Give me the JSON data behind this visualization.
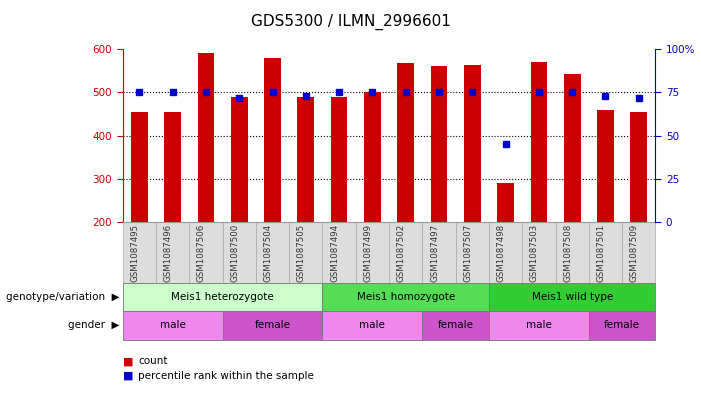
{
  "title": "GDS5300 / ILMN_2996601",
  "samples": [
    "GSM1087495",
    "GSM1087496",
    "GSM1087506",
    "GSM1087500",
    "GSM1087504",
    "GSM1087505",
    "GSM1087494",
    "GSM1087499",
    "GSM1087502",
    "GSM1087497",
    "GSM1087507",
    "GSM1087498",
    "GSM1087503",
    "GSM1087508",
    "GSM1087501",
    "GSM1087509"
  ],
  "counts": [
    455,
    455,
    590,
    490,
    580,
    490,
    490,
    500,
    567,
    560,
    563,
    290,
    570,
    543,
    460,
    455
  ],
  "percentiles": [
    75,
    75,
    75,
    72,
    75,
    73,
    75,
    75,
    75,
    75,
    75,
    45,
    75,
    75,
    73,
    72
  ],
  "ymin": 200,
  "ymax": 600,
  "yticks_left": [
    200,
    300,
    400,
    500,
    600
  ],
  "yticks_right": [
    0,
    25,
    50,
    75,
    100
  ],
  "bar_color": "#cc0000",
  "dot_color": "#0000cc",
  "genotype_groups": [
    {
      "label": "Meis1 heterozygote",
      "start": 0,
      "end": 5,
      "color": "#ccffcc"
    },
    {
      "label": "Meis1 homozygote",
      "start": 6,
      "end": 10,
      "color": "#55dd55"
    },
    {
      "label": "Meis1 wild type",
      "start": 11,
      "end": 15,
      "color": "#33cc33"
    }
  ],
  "gender_groups": [
    {
      "label": "male",
      "start": 0,
      "end": 2,
      "color": "#ee88ee"
    },
    {
      "label": "female",
      "start": 3,
      "end": 5,
      "color": "#cc55cc"
    },
    {
      "label": "male",
      "start": 6,
      "end": 8,
      "color": "#ee88ee"
    },
    {
      "label": "female",
      "start": 9,
      "end": 10,
      "color": "#cc55cc"
    },
    {
      "label": "male",
      "start": 11,
      "end": 13,
      "color": "#ee88ee"
    },
    {
      "label": "female",
      "start": 14,
      "end": 15,
      "color": "#cc55cc"
    }
  ],
  "left_axis_color": "#cc0000",
  "right_axis_color": "#0000cc",
  "tick_fontsize": 7.5,
  "title_fontsize": 11,
  "label_fontsize": 7.5
}
